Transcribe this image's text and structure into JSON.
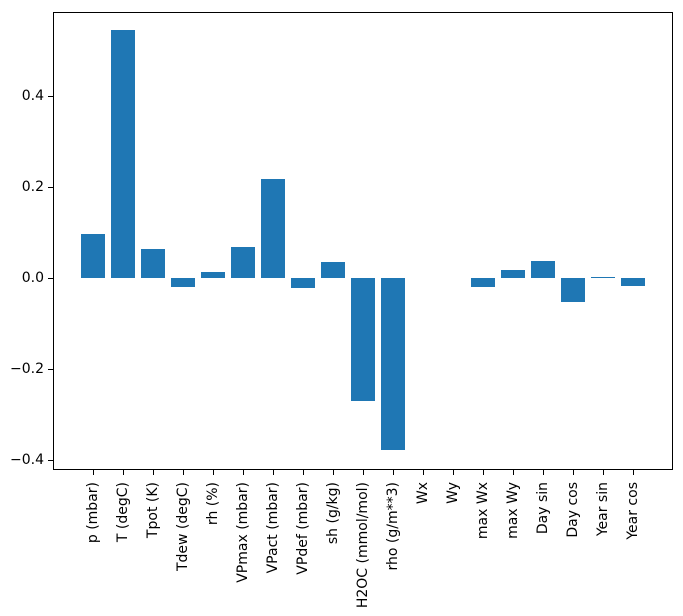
{
  "figure": {
    "background": "#ffffff",
    "axis_color": "#000000"
  },
  "chart_data": {
    "type": "bar",
    "categories": [
      "p (mbar)",
      "T (degC)",
      "Tpot (K)",
      "Tdew (degC)",
      "rh (%)",
      "VPmax (mbar)",
      "VPact (mbar)",
      "VPdef (mbar)",
      "sh (g/kg)",
      "H2OC (mmol/mol)",
      "rho (g/m**3)",
      "Wx",
      "Wy",
      "max Wx",
      "max Wy",
      "Day sin",
      "Day cos",
      "Year sin",
      "Year cos"
    ],
    "values": [
      0.098,
      0.545,
      0.064,
      -0.019,
      0.013,
      0.068,
      0.218,
      -0.022,
      0.035,
      -0.27,
      -0.377,
      0.0,
      0.0,
      -0.02,
      0.017,
      0.037,
      -0.053,
      0.002,
      -0.018
    ],
    "bar_color": "#1f77b4",
    "bar_width": 0.8,
    "xlim": [
      -1.34,
      19.34
    ],
    "ylim": [
      -0.422,
      0.585
    ],
    "yticks": [
      -0.4,
      -0.2,
      0.0,
      0.2,
      0.4
    ],
    "ytick_labels": [
      "−0.4",
      "−0.2",
      "0.0",
      "0.2",
      "0.4"
    ],
    "x_tick_label_rotation": 90,
    "grid": false,
    "legend": null
  }
}
